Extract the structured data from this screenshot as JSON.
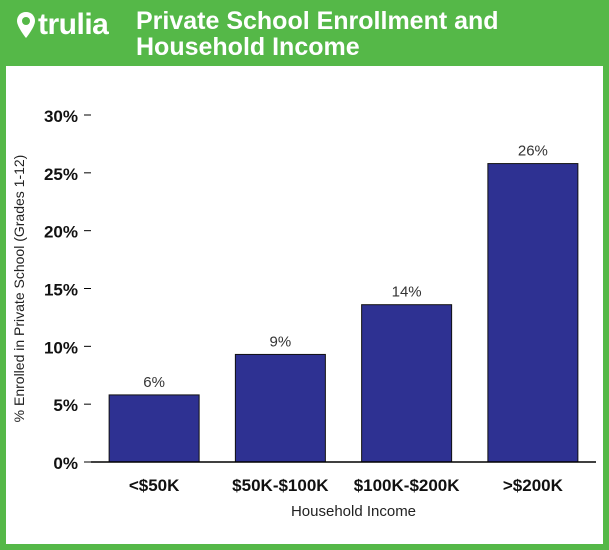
{
  "brand": {
    "name": "trulia",
    "green": "#55b848"
  },
  "header": {
    "title_line1": "Private School Enrollment and",
    "title_line2": "Household Income"
  },
  "chart_data": {
    "type": "bar",
    "title": "Private School Enrollment and Household Income",
    "xlabel": "Household Income",
    "ylabel": "% Enrolled in Private School (Grades 1-12)",
    "categories": [
      "<$50K",
      "$50K-$100K",
      "$100K-$200K",
      ">$200K"
    ],
    "values": [
      5.8,
      9.3,
      13.6,
      25.8
    ],
    "data_labels": [
      "6%",
      "9%",
      "14%",
      "26%"
    ],
    "ylim": [
      0,
      30
    ],
    "yticks": [
      0,
      5,
      10,
      15,
      20,
      25,
      30
    ],
    "ytick_labels": [
      "0%",
      "5%",
      "10%",
      "15%",
      "20%",
      "25%",
      "30%"
    ],
    "bar_color": "#2e3192",
    "grid": false
  }
}
